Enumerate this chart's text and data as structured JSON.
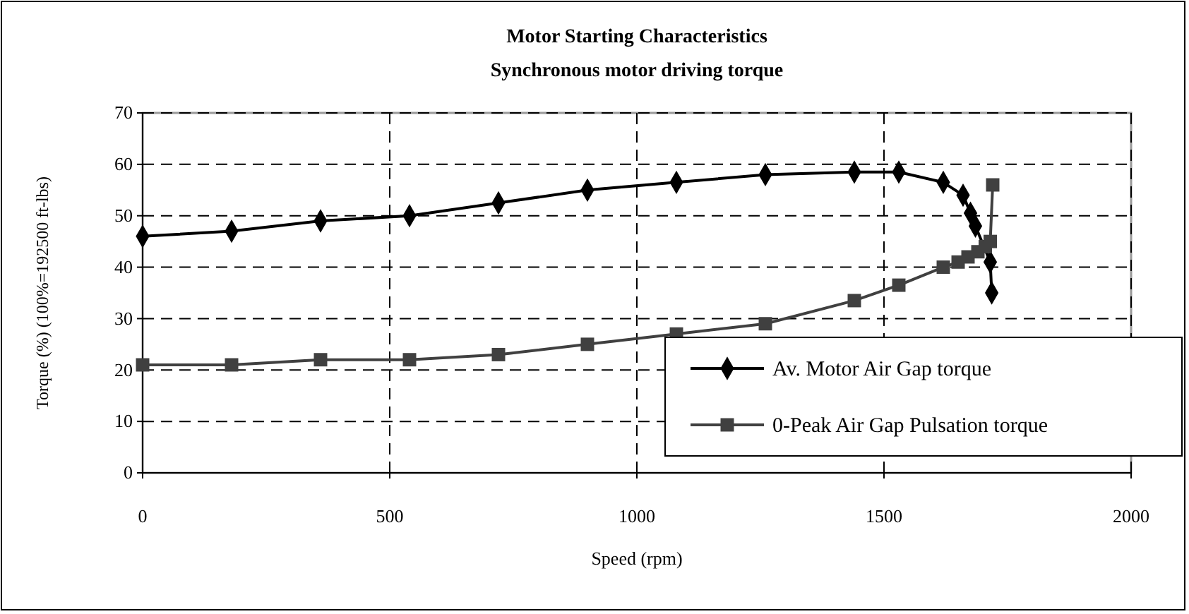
{
  "chart_data": {
    "type": "line",
    "title": "Motor Starting Characteristics",
    "subtitle": "Synchronous motor driving torque",
    "xlabel": "Speed (rpm)",
    "ylabel": "Torque (%) (100%=192500 ft-lbs)",
    "xlim": [
      0,
      2000
    ],
    "xticks": [
      0,
      500,
      1000,
      1500,
      2000
    ],
    "ylim": [
      0,
      70
    ],
    "yticks": [
      0,
      10,
      20,
      30,
      40,
      50,
      60,
      70
    ],
    "grid": true,
    "legend": "bottom right",
    "series": [
      {
        "name": "Av. Motor Air Gap torque",
        "color": "#000000",
        "marker": "diamond",
        "x": [
          0,
          180,
          360,
          540,
          720,
          900,
          1080,
          1260,
          1440,
          1530,
          1620,
          1660,
          1675,
          1685,
          1715,
          1718
        ],
        "values": [
          46,
          47,
          49,
          50,
          52.5,
          55,
          56.5,
          58,
          58.5,
          58.5,
          56.5,
          54,
          50.5,
          48,
          41,
          35
        ]
      },
      {
        "name": "0-Peak Air Gap Pulsation torque",
        "color": "#404040",
        "marker": "square",
        "x": [
          0,
          180,
          360,
          540,
          720,
          900,
          1080,
          1260,
          1440,
          1530,
          1620,
          1650,
          1670,
          1690,
          1705,
          1715,
          1720
        ],
        "values": [
          21,
          21,
          22,
          22,
          23,
          25,
          27,
          29,
          33.5,
          36.5,
          40,
          41,
          42,
          43,
          44,
          45,
          56
        ]
      }
    ]
  }
}
